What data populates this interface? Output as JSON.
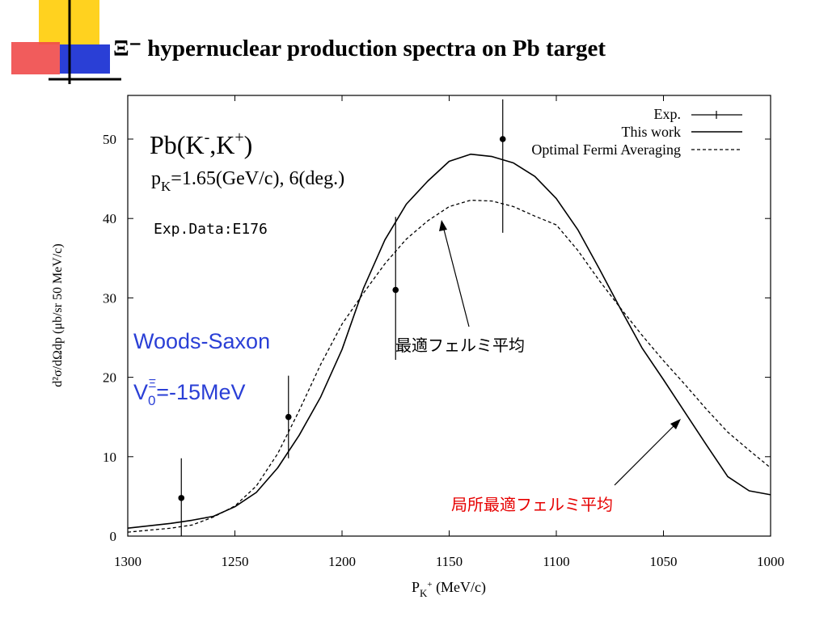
{
  "slide": {
    "title": "Ξ⁻ hypernuclear production spectra on Pb target",
    "colors": {
      "accent_yellow": "#ffd21f",
      "accent_red": "#f04a4a",
      "accent_blue": "#2a3fd6"
    }
  },
  "chart_data": {
    "type": "line",
    "title": "",
    "xlabel": "P",
    "xlabel_sub": "K",
    "xlabel_sup": "+",
    "xlabel_unit": " (MeV/c)",
    "ylabel": "d²σ/dΩdp (μb/sr 50 MeV/c)",
    "xlim": [
      1300,
      1000
    ],
    "ylim": [
      0,
      55
    ],
    "x_reversed": true,
    "xticks": [
      "1300",
      "1250",
      "1200",
      "1150",
      "1100",
      "1050",
      "1000"
    ],
    "xtick_values": [
      1300,
      1250,
      1200,
      1150,
      1100,
      1050,
      1000
    ],
    "yticks": [
      "0",
      "10",
      "20",
      "30",
      "40",
      "50"
    ],
    "ytick_values": [
      0,
      10,
      20,
      30,
      40,
      50
    ],
    "legend": {
      "placement": "top-right",
      "entries": [
        "Exp.",
        "This work",
        "Optimal Fermi Averaging"
      ]
    },
    "annotations": {
      "reaction_main": "Pb(K",
      "reaction_sup1": "-",
      "reaction_mid": ",K",
      "reaction_sup2": "+",
      "reaction_end": ")",
      "momentum_p": "p",
      "momentum_sub": "K",
      "momentum_rest": "=1.65(GeV/c),  6(deg.)",
      "exp_data": "Exp.Data:E176",
      "woods_saxon": "Woods-Saxon",
      "potential_v": "V",
      "potential_sub": "0",
      "potential_sup": "Ξ",
      "potential_rest": "=-15MeV",
      "ofa_jp": "最適フェルミ平均",
      "local_ofa_jp": "局所最適フェルミ平均"
    },
    "series": [
      {
        "name": "Exp.",
        "style": "points-errorbars",
        "points": [
          {
            "x": 1275,
            "y": 4.8,
            "ylo": 0,
            "yhi": 9.8
          },
          {
            "x": 1225,
            "y": 15.0,
            "ylo": 9.8,
            "yhi": 20.2
          },
          {
            "x": 1175,
            "y": 31.0,
            "ylo": 22.2,
            "yhi": 40.2
          },
          {
            "x": 1125,
            "y": 50.0,
            "ylo": 38.2,
            "yhi": 55.0
          }
        ]
      },
      {
        "name": "This work",
        "style": "solid",
        "x": [
          1300,
          1280,
          1270,
          1260,
          1250,
          1240,
          1230,
          1220,
          1210,
          1200,
          1190,
          1180,
          1170,
          1160,
          1150,
          1140,
          1130,
          1120,
          1110,
          1100,
          1090,
          1080,
          1070,
          1060,
          1050,
          1040,
          1030,
          1020,
          1010,
          1000
        ],
        "y": [
          1.0,
          1.6,
          2.0,
          2.5,
          3.7,
          5.5,
          8.6,
          12.7,
          17.5,
          23.5,
          31.2,
          37.3,
          41.8,
          44.7,
          47.2,
          48.1,
          47.8,
          47.0,
          45.3,
          42.5,
          38.6,
          33.7,
          28.6,
          23.7,
          19.7,
          15.6,
          11.5,
          7.5,
          5.7,
          5.2
        ]
      },
      {
        "name": "Optimal Fermi Averaging",
        "style": "dashed",
        "x": [
          1300,
          1280,
          1270,
          1260,
          1250,
          1240,
          1230,
          1220,
          1210,
          1200,
          1190,
          1180,
          1170,
          1160,
          1150,
          1140,
          1130,
          1120,
          1110,
          1100,
          1090,
          1080,
          1070,
          1060,
          1050,
          1040,
          1030,
          1020,
          1010,
          1000
        ],
        "y": [
          0.5,
          1.0,
          1.4,
          2.4,
          3.8,
          6.3,
          10.4,
          15.8,
          21.6,
          26.7,
          30.6,
          34.3,
          37.4,
          39.7,
          41.5,
          42.3,
          42.2,
          41.5,
          40.3,
          39.2,
          36.0,
          32.2,
          28.7,
          25.3,
          22.1,
          19.1,
          16.0,
          13.1,
          10.8,
          8.6
        ]
      }
    ]
  }
}
